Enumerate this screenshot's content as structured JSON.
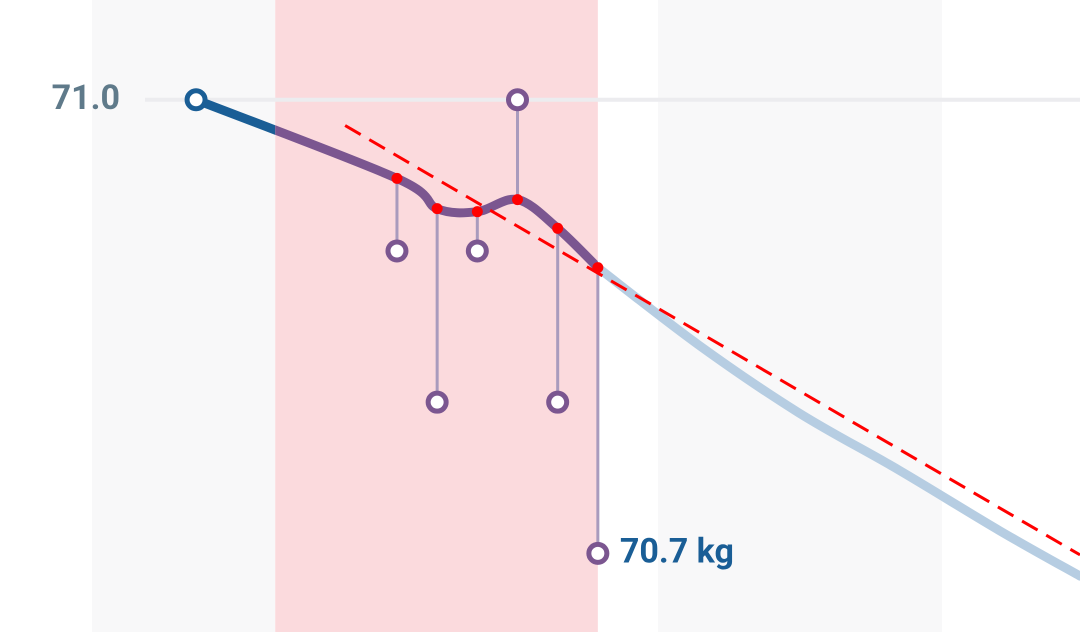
{
  "chart_data": {
    "type": "line",
    "ylim": [
      70.648,
      71.066
    ],
    "xlim": [
      -4.88,
      22
    ],
    "yticks": [
      {
        "value": 71,
        "label": "71.0"
      }
    ],
    "grid": true,
    "highlight": [
      1.97,
      10
    ],
    "highlight_color": "#fbdadd",
    "colors": {
      "before": "#1a5e96",
      "inside": "#7b5690",
      "stem": "#a99bbd",
      "label": "#1a5e96",
      "tick_label": "#5f7a8a",
      "grid": "#ececef"
    },
    "measurements": {
      "x": [
        0,
        5,
        6,
        7,
        8,
        9,
        10
      ],
      "values": [
        71.0,
        70.9,
        70.8,
        70.9,
        71.0,
        70.8,
        70.7
      ],
      "value_labels": [
        null,
        null,
        null,
        null,
        null,
        null,
        "70.7 kg"
      ]
    },
    "trend": {
      "x": [
        0,
        5,
        6,
        7,
        8,
        9,
        10
      ],
      "values": [
        71.0,
        70.948,
        70.928,
        70.926,
        70.934,
        70.915,
        70.889
      ],
      "dot_color": "#ff0000"
    },
    "forecast": {
      "x": [
        10,
        12.5,
        15,
        17.5,
        20,
        22
      ],
      "values": [
        70.889,
        70.838,
        70.793,
        70.755,
        70.715,
        70.685
      ],
      "color": "#b6cde2"
    },
    "regression": {
      "x": [
        3.71,
        22
      ],
      "values": [
        70.983,
        70.699
      ],
      "color": "#ff0000"
    }
  }
}
